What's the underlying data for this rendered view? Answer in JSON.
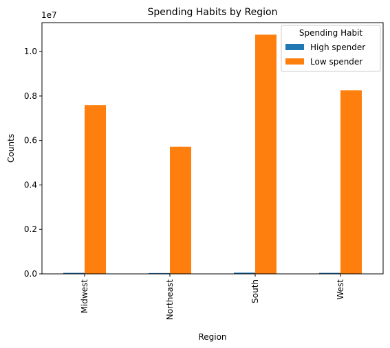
{
  "chart_data": {
    "type": "bar",
    "title": "Spending Habits by Region",
    "xlabel": "Region",
    "ylabel": "Counts",
    "y_offset_label": "1e7",
    "y_scale": 10000000,
    "ylim": [
      0,
      11300000
    ],
    "yticks": [
      0,
      2000000,
      4000000,
      6000000,
      8000000,
      10000000
    ],
    "ytick_labels": [
      "0.0",
      "0.2",
      "0.4",
      "0.6",
      "0.8",
      "1.0"
    ],
    "categories": [
      "Midwest",
      "Northeast",
      "South",
      "West"
    ],
    "series": [
      {
        "name": "High spender",
        "values": [
          45000,
          35000,
          55000,
          45000
        ],
        "color": "#1f77b4"
      },
      {
        "name": "Low spender",
        "values": [
          7590000,
          5720000,
          10760000,
          8260000
        ],
        "color": "#ff7f0e"
      }
    ],
    "legend": {
      "title": "Spending Habit",
      "position": "top-right"
    },
    "grid": false
  }
}
